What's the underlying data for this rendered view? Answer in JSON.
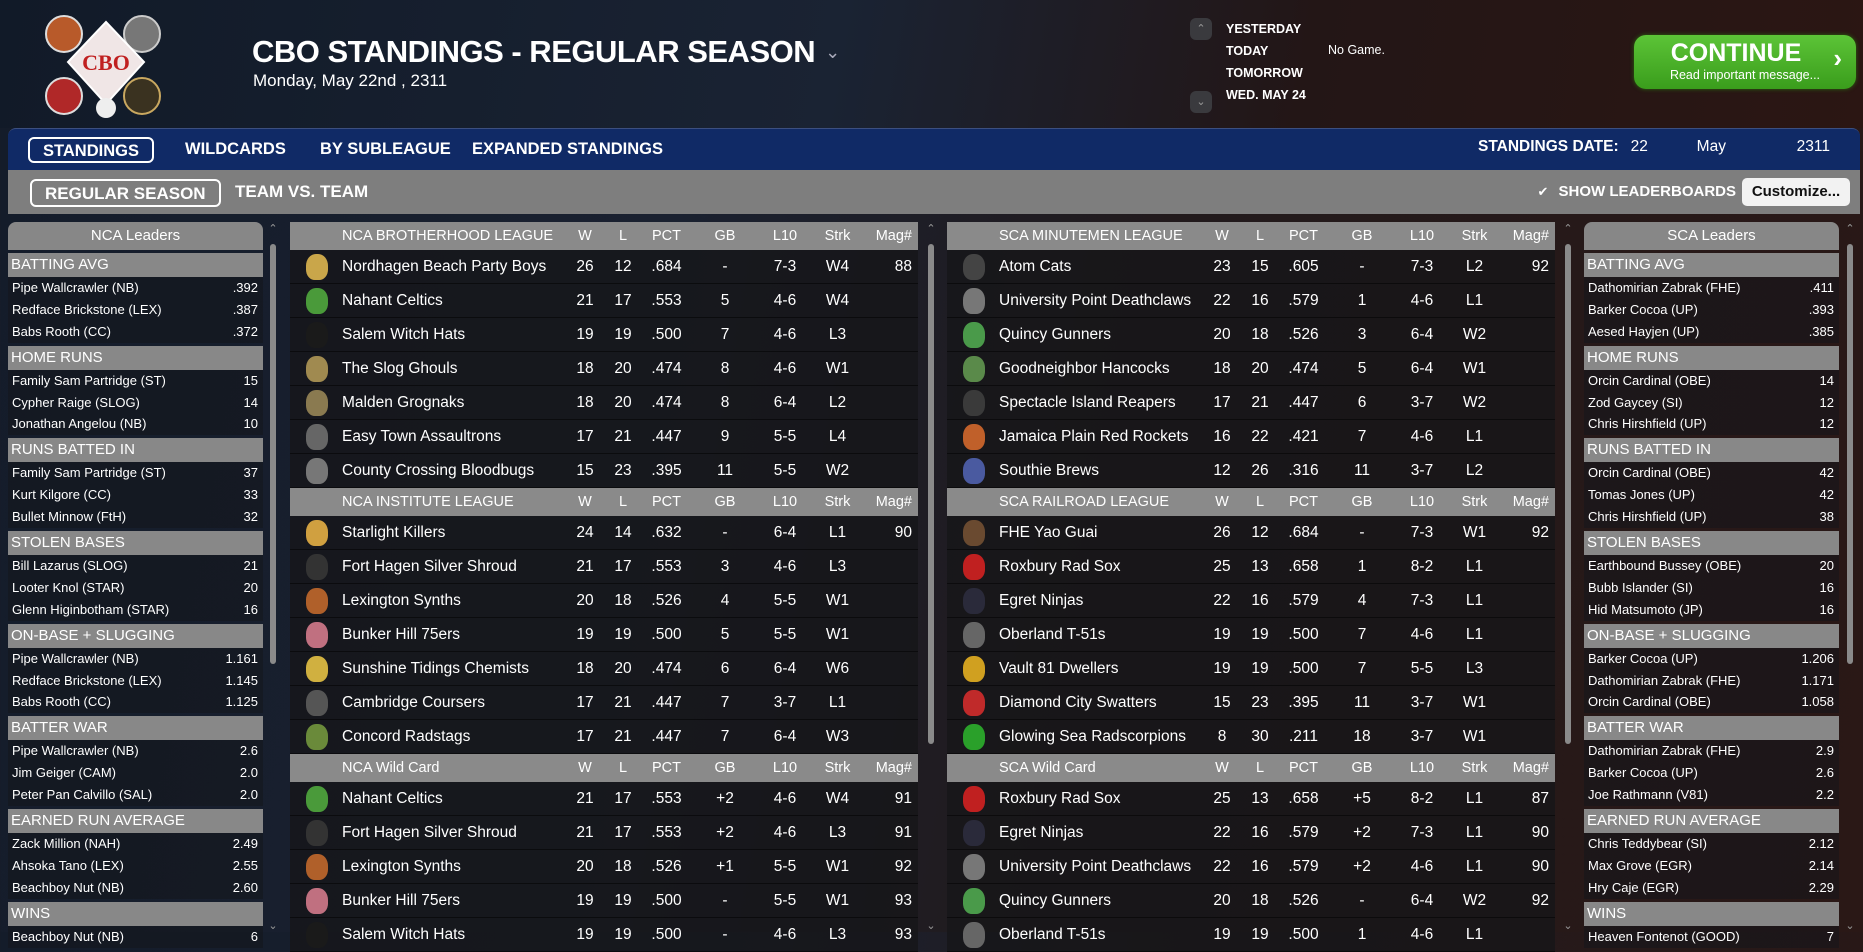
{
  "header": {
    "title": "CBO STANDINGS - REGULAR SEASON",
    "date": "Monday, May 22nd , 2311",
    "logo_text": "CBO"
  },
  "date_nav": {
    "items": [
      "YESTERDAY",
      "TODAY",
      "TOMORROW",
      "WED. MAY 24"
    ],
    "today_status": "No Game."
  },
  "continue_button": {
    "label": "CONTINUE",
    "sub": "Read important message...",
    "color": "#4bb22a"
  },
  "tabs": [
    {
      "label": "STANDINGS",
      "active": true
    },
    {
      "label": "WILDCARDS"
    },
    {
      "label": "BY SUBLEAGUE"
    },
    {
      "label": "EXPANDED STANDINGS"
    }
  ],
  "standings_date": {
    "label": "STANDINGS DATE:",
    "day": "22",
    "month": "May",
    "year": "2311"
  },
  "subtabs": [
    {
      "label": "REGULAR SEASON",
      "active": true
    },
    {
      "label": "TEAM VS. TEAM"
    }
  ],
  "show_leaderboards": {
    "label": "SHOW LEADERBOARDS",
    "checked": true
  },
  "customize_label": "Customize...",
  "columns": [
    "W",
    "L",
    "PCT",
    "GB",
    "L10",
    "Strk",
    "Mag#"
  ],
  "left_leaders": {
    "title": "NCA Leaders",
    "sections": [
      {
        "name": "BATTING AVG",
        "rows": [
          [
            "Pipe Wallcrawler (NB)",
            ".392"
          ],
          [
            "Redface Brickstone (LEX)",
            ".387"
          ],
          [
            "Babs Rooth (CC)",
            ".372"
          ]
        ]
      },
      {
        "name": "HOME RUNS",
        "rows": [
          [
            "Family Sam Partridge (ST)",
            "15"
          ],
          [
            "Cypher Raige (SLOG)",
            "14"
          ],
          [
            "Jonathan Angelou (NB)",
            "10"
          ]
        ]
      },
      {
        "name": "RUNS BATTED IN",
        "rows": [
          [
            "Family Sam Partridge (ST)",
            "37"
          ],
          [
            "Kurt Kilgore (CC)",
            "33"
          ],
          [
            "Bullet Minnow (FtH)",
            "32"
          ]
        ]
      },
      {
        "name": "STOLEN BASES",
        "rows": [
          [
            "Bill Lazarus (SLOG)",
            "21"
          ],
          [
            "Looter Knol (STAR)",
            "20"
          ],
          [
            "Glenn Higinbotham (STAR)",
            "16"
          ]
        ]
      },
      {
        "name": "ON-BASE + SLUGGING",
        "rows": [
          [
            "Pipe Wallcrawler (NB)",
            "1.161"
          ],
          [
            "Redface Brickstone (LEX)",
            "1.145"
          ],
          [
            "Babs Rooth (CC)",
            "1.125"
          ]
        ]
      },
      {
        "name": "BATTER WAR",
        "rows": [
          [
            "Pipe Wallcrawler (NB)",
            "2.6"
          ],
          [
            "Jim Geiger (CAM)",
            "2.0"
          ],
          [
            "Peter Pan Calvillo (SAL)",
            "2.0"
          ]
        ]
      },
      {
        "name": "EARNED RUN AVERAGE",
        "rows": [
          [
            "Zack Million (NAH)",
            "2.49"
          ],
          [
            "Ahsoka Tano (LEX)",
            "2.55"
          ],
          [
            "Beachboy Nut (NB)",
            "2.60"
          ]
        ]
      },
      {
        "name": "WINS",
        "rows": [
          [
            "Beachboy Nut (NB)",
            "6"
          ]
        ]
      }
    ]
  },
  "right_leaders": {
    "title": "SCA Leaders",
    "sections": [
      {
        "name": "BATTING AVG",
        "rows": [
          [
            "Dathomirian Zabrak (FHE)",
            ".411"
          ],
          [
            "Barker Cocoa (UP)",
            ".393"
          ],
          [
            "Aesed Hayjen (UP)",
            ".385"
          ]
        ]
      },
      {
        "name": "HOME RUNS",
        "rows": [
          [
            "Orcin Cardinal (OBE)",
            "14"
          ],
          [
            "Zod Gaycey (SI)",
            "12"
          ],
          [
            "Chris Hirshfield (UP)",
            "12"
          ]
        ]
      },
      {
        "name": "RUNS BATTED IN",
        "rows": [
          [
            "Orcin Cardinal (OBE)",
            "42"
          ],
          [
            "Tomas Jones (UP)",
            "42"
          ],
          [
            "Chris Hirshfield (UP)",
            "38"
          ]
        ]
      },
      {
        "name": "STOLEN BASES",
        "rows": [
          [
            "Earthbound Bussey (OBE)",
            "20"
          ],
          [
            "Bubb Islander (SI)",
            "16"
          ],
          [
            "Hid Matsumoto (JP)",
            "16"
          ]
        ]
      },
      {
        "name": "ON-BASE + SLUGGING",
        "rows": [
          [
            "Barker Cocoa (UP)",
            "1.206"
          ],
          [
            "Dathomirian Zabrak (FHE)",
            "1.171"
          ],
          [
            "Orcin Cardinal (OBE)",
            "1.058"
          ]
        ]
      },
      {
        "name": "BATTER WAR",
        "rows": [
          [
            "Dathomirian Zabrak (FHE)",
            "2.9"
          ],
          [
            "Barker Cocoa (UP)",
            "2.6"
          ],
          [
            "Joe Rathmann (V81)",
            "2.2"
          ]
        ]
      },
      {
        "name": "EARNED RUN AVERAGE",
        "rows": [
          [
            "Chris Teddybear (SI)",
            "2.12"
          ],
          [
            "Max Grove (EGR)",
            "2.14"
          ],
          [
            "Hry Caje (EGR)",
            "2.29"
          ]
        ]
      },
      {
        "name": "WINS",
        "rows": [
          [
            "Heaven Fontenot (GOOD)",
            "7"
          ]
        ]
      }
    ]
  },
  "nca_tables": [
    {
      "title": "NCA BROTHERHOOD LEAGUE",
      "rows": [
        [
          "Nordhagen Beach Party Boys",
          "26",
          "12",
          ".684",
          "-",
          "7-3",
          "W4",
          "88",
          "#c9a64a"
        ],
        [
          "Nahant Celtics",
          "21",
          "17",
          ".553",
          "5",
          "4-6",
          "W4",
          "",
          "#4a9a3a"
        ],
        [
          "Salem Witch Hats",
          "19",
          "19",
          ".500",
          "7",
          "4-6",
          "L3",
          "",
          "#1a1a1a"
        ],
        [
          "The Slog Ghouls",
          "18",
          "20",
          ".474",
          "8",
          "4-6",
          "W1",
          "",
          "#a08a50"
        ],
        [
          "Malden Grognaks",
          "18",
          "20",
          ".474",
          "8",
          "6-4",
          "L2",
          "",
          "#8a7a50"
        ],
        [
          "Easy Town Assaultrons",
          "17",
          "21",
          ".447",
          "9",
          "5-5",
          "L4",
          "",
          "#666"
        ],
        [
          "County Crossing Bloodbugs",
          "15",
          "23",
          ".395",
          "11",
          "5-5",
          "W2",
          "",
          "#777"
        ]
      ]
    },
    {
      "title": "NCA INSTITUTE LEAGUE",
      "rows": [
        [
          "Starlight Killers",
          "24",
          "14",
          ".632",
          "-",
          "6-4",
          "L1",
          "90",
          "#d0a040"
        ],
        [
          "Fort Hagen Silver Shroud",
          "21",
          "17",
          ".553",
          "3",
          "4-6",
          "L3",
          "",
          "#333"
        ],
        [
          "Lexington Synths",
          "20",
          "18",
          ".526",
          "4",
          "5-5",
          "W1",
          "",
          "#b0602a"
        ],
        [
          "Bunker Hill 75ers",
          "19",
          "19",
          ".500",
          "5",
          "5-5",
          "W1",
          "",
          "#c07080"
        ],
        [
          "Sunshine Tidings Chemists",
          "18",
          "20",
          ".474",
          "6",
          "6-4",
          "W6",
          "",
          "#d0b040"
        ],
        [
          "Cambridge Coursers",
          "17",
          "21",
          ".447",
          "7",
          "3-7",
          "L1",
          "",
          "#555"
        ],
        [
          "Concord Radstags",
          "17",
          "21",
          ".447",
          "7",
          "6-4",
          "W3",
          "",
          "#6a8a3a"
        ]
      ]
    },
    {
      "title": "NCA  Wild Card",
      "rows": [
        [
          "Nahant Celtics",
          "21",
          "17",
          ".553",
          "+2",
          "4-6",
          "W4",
          "91",
          "#4a9a3a"
        ],
        [
          "Fort Hagen Silver Shroud",
          "21",
          "17",
          ".553",
          "+2",
          "4-6",
          "L3",
          "91",
          "#333"
        ],
        [
          "Lexington Synths",
          "20",
          "18",
          ".526",
          "+1",
          "5-5",
          "W1",
          "92",
          "#b0602a"
        ],
        [
          "Bunker Hill 75ers",
          "19",
          "19",
          ".500",
          "-",
          "5-5",
          "W1",
          "93",
          "#c07080"
        ],
        [
          "Salem Witch Hats",
          "19",
          "19",
          ".500",
          "-",
          "4-6",
          "L3",
          "93",
          "#1a1a1a"
        ]
      ]
    }
  ],
  "sca_tables": [
    {
      "title": "SCA MINUTEMEN LEAGUE",
      "rows": [
        [
          "Atom Cats",
          "23",
          "15",
          ".605",
          "-",
          "7-3",
          "L2",
          "92",
          "#444"
        ],
        [
          "University Point Deathclaws",
          "22",
          "16",
          ".579",
          "1",
          "4-6",
          "L1",
          "",
          "#777"
        ],
        [
          "Quincy Gunners",
          "20",
          "18",
          ".526",
          "3",
          "6-4",
          "W2",
          "",
          "#4a9a4a"
        ],
        [
          "Goodneighbor Hancocks",
          "18",
          "20",
          ".474",
          "5",
          "6-4",
          "W1",
          "",
          "#5a8a4a"
        ],
        [
          "Spectacle Island Reapers",
          "17",
          "21",
          ".447",
          "6",
          "3-7",
          "W2",
          "",
          "#3a3a3a"
        ],
        [
          "Jamaica Plain Red Rockets",
          "16",
          "22",
          ".421",
          "7",
          "4-6",
          "L1",
          "",
          "#c0602a"
        ],
        [
          "Southie Brews",
          "12",
          "26",
          ".316",
          "11",
          "3-7",
          "L2",
          "",
          "#4a5aa0"
        ]
      ]
    },
    {
      "title": "SCA RAILROAD LEAGUE",
      "rows": [
        [
          "FHE Yao Guai",
          "26",
          "12",
          ".684",
          "-",
          "7-3",
          "W1",
          "92",
          "#6a4a30"
        ],
        [
          "Roxbury Rad Sox",
          "25",
          "13",
          ".658",
          "1",
          "8-2",
          "L1",
          "",
          "#c02020"
        ],
        [
          "Egret Ninjas",
          "22",
          "16",
          ".579",
          "4",
          "7-3",
          "L1",
          "",
          "#2a2a3a"
        ],
        [
          "Oberland T-51s",
          "19",
          "19",
          ".500",
          "7",
          "4-6",
          "L1",
          "",
          "#666"
        ],
        [
          "Vault 81 Dwellers",
          "19",
          "19",
          ".500",
          "7",
          "5-5",
          "L3",
          "",
          "#d0a020"
        ],
        [
          "Diamond City Swatters",
          "15",
          "23",
          ".395",
          "11",
          "3-7",
          "W1",
          "",
          "#c02a2a"
        ],
        [
          "Glowing Sea Radscorpions",
          "8",
          "30",
          ".211",
          "18",
          "3-7",
          "W1",
          "",
          "#2aa02a"
        ]
      ]
    },
    {
      "title": "SCA  Wild Card",
      "rows": [
        [
          "Roxbury Rad Sox",
          "25",
          "13",
          ".658",
          "+5",
          "8-2",
          "L1",
          "87",
          "#c02020"
        ],
        [
          "Egret Ninjas",
          "22",
          "16",
          ".579",
          "+2",
          "7-3",
          "L1",
          "90",
          "#2a2a3a"
        ],
        [
          "University Point Deathclaws",
          "22",
          "16",
          ".579",
          "+2",
          "4-6",
          "L1",
          "90",
          "#777"
        ],
        [
          "Quincy Gunners",
          "20",
          "18",
          ".526",
          "-",
          "6-4",
          "W2",
          "92",
          "#4a9a4a"
        ],
        [
          "Oberland T-51s",
          "19",
          "19",
          ".500",
          "1",
          "4-6",
          "L1",
          "",
          "#666"
        ]
      ]
    }
  ]
}
